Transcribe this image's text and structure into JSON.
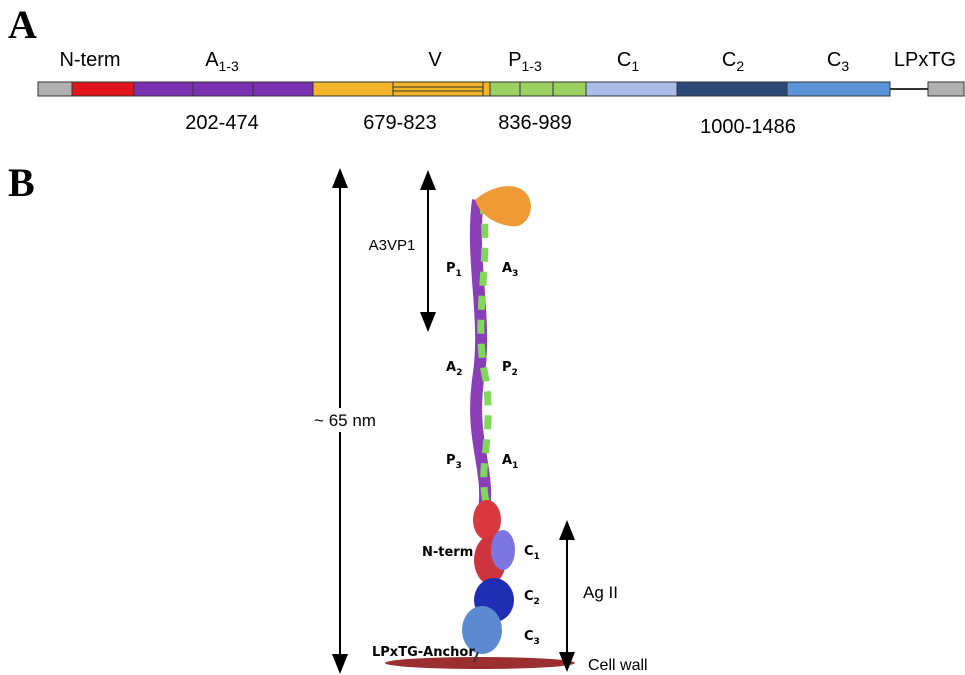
{
  "panel_a": {
    "label": "A",
    "domain_labels": [
      {
        "text": "N-term"
      },
      {
        "text": "A",
        "sub": "1-3"
      },
      {
        "text": "V"
      },
      {
        "text": "P",
        "sub": "1-3"
      },
      {
        "text": "C",
        "sub": "1"
      },
      {
        "text": "C",
        "sub": "2"
      },
      {
        "text": "C",
        "sub": "3"
      },
      {
        "text": "LPxTG"
      }
    ],
    "ranges": [
      "202-474",
      "679-823",
      "836-989",
      "1000-1486"
    ]
  },
  "panel_b": {
    "label": "B",
    "length": "~ 65 nm",
    "region": "A3VP1",
    "antigen": "Ag II",
    "cell_wall": "Cell wall",
    "anchor": "LPxTG-Anchor",
    "n_term": "N-term",
    "subunits": [
      {
        "text": "P",
        "sub": "1"
      },
      {
        "text": "A",
        "sub": "3"
      },
      {
        "text": "A",
        "sub": "2"
      },
      {
        "text": "P",
        "sub": "2"
      },
      {
        "text": "P",
        "sub": "3"
      },
      {
        "text": "A",
        "sub": "1"
      },
      {
        "text": "C",
        "sub": "1"
      },
      {
        "text": "C",
        "sub": "2"
      },
      {
        "text": "C",
        "sub": "3"
      }
    ]
  }
}
